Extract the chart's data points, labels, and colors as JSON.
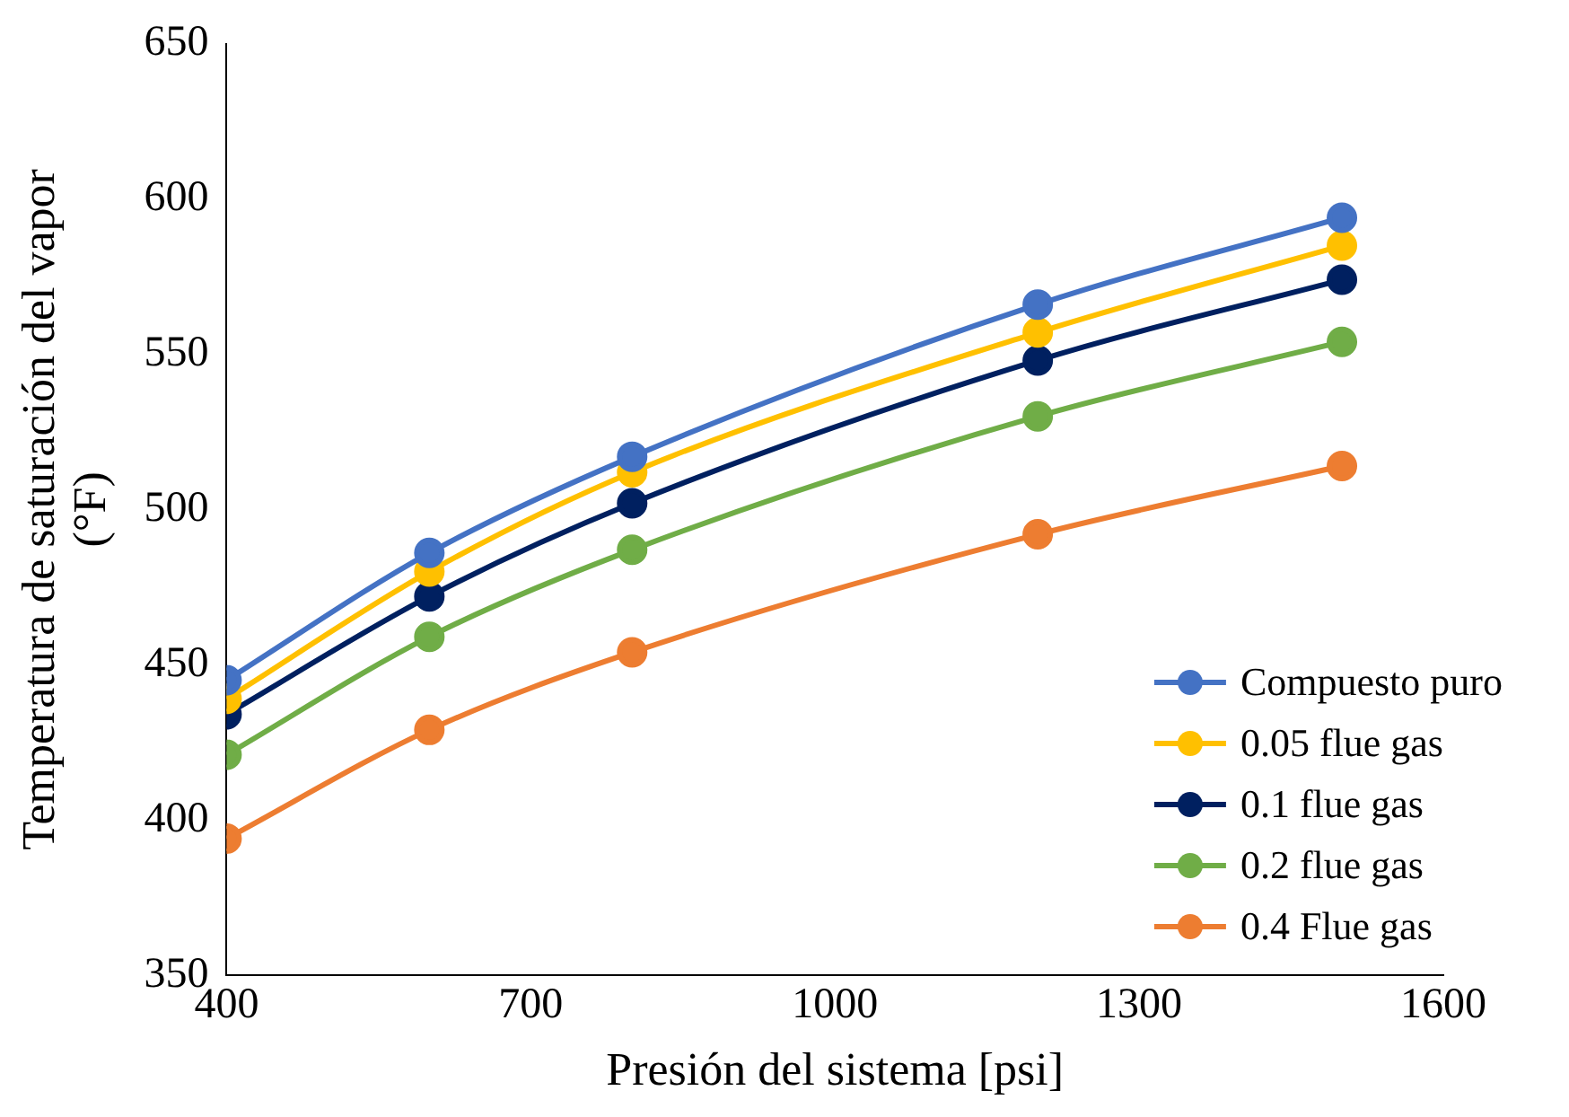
{
  "chart_data": {
    "type": "line",
    "xlabel": "Presión del sistema [psi]",
    "ylabel": "Temperatura de saturación del vapor (°F)",
    "x": [
      400,
      600,
      800,
      1200,
      1500
    ],
    "series": [
      {
        "name": "Compuesto puro",
        "color": "#4472c4",
        "values": [
          445,
          486,
          517,
          566,
          594
        ]
      },
      {
        "name": "0.05 flue gas",
        "color": "#ffc000",
        "values": [
          439,
          480,
          512,
          557,
          585
        ]
      },
      {
        "name": "0.1 flue gas",
        "color": "#002060",
        "values": [
          434,
          472,
          502,
          548,
          574
        ]
      },
      {
        "name": "0.2 flue gas",
        "color": "#70ad47",
        "values": [
          421,
          459,
          487,
          530,
          554
        ]
      },
      {
        "name": "0.4 Flue gas",
        "color": "#ed7d31",
        "values": [
          394,
          429,
          454,
          492,
          514
        ]
      }
    ],
    "xlim": [
      400,
      1600
    ],
    "xticks": [
      400,
      700,
      1000,
      1300,
      1600
    ],
    "ylim": [
      350,
      650
    ],
    "yticks": [
      350,
      400,
      450,
      500,
      550,
      600,
      650
    ],
    "grid": false,
    "legend": "bottom right",
    "marker": "circle",
    "line_style": "solid"
  }
}
